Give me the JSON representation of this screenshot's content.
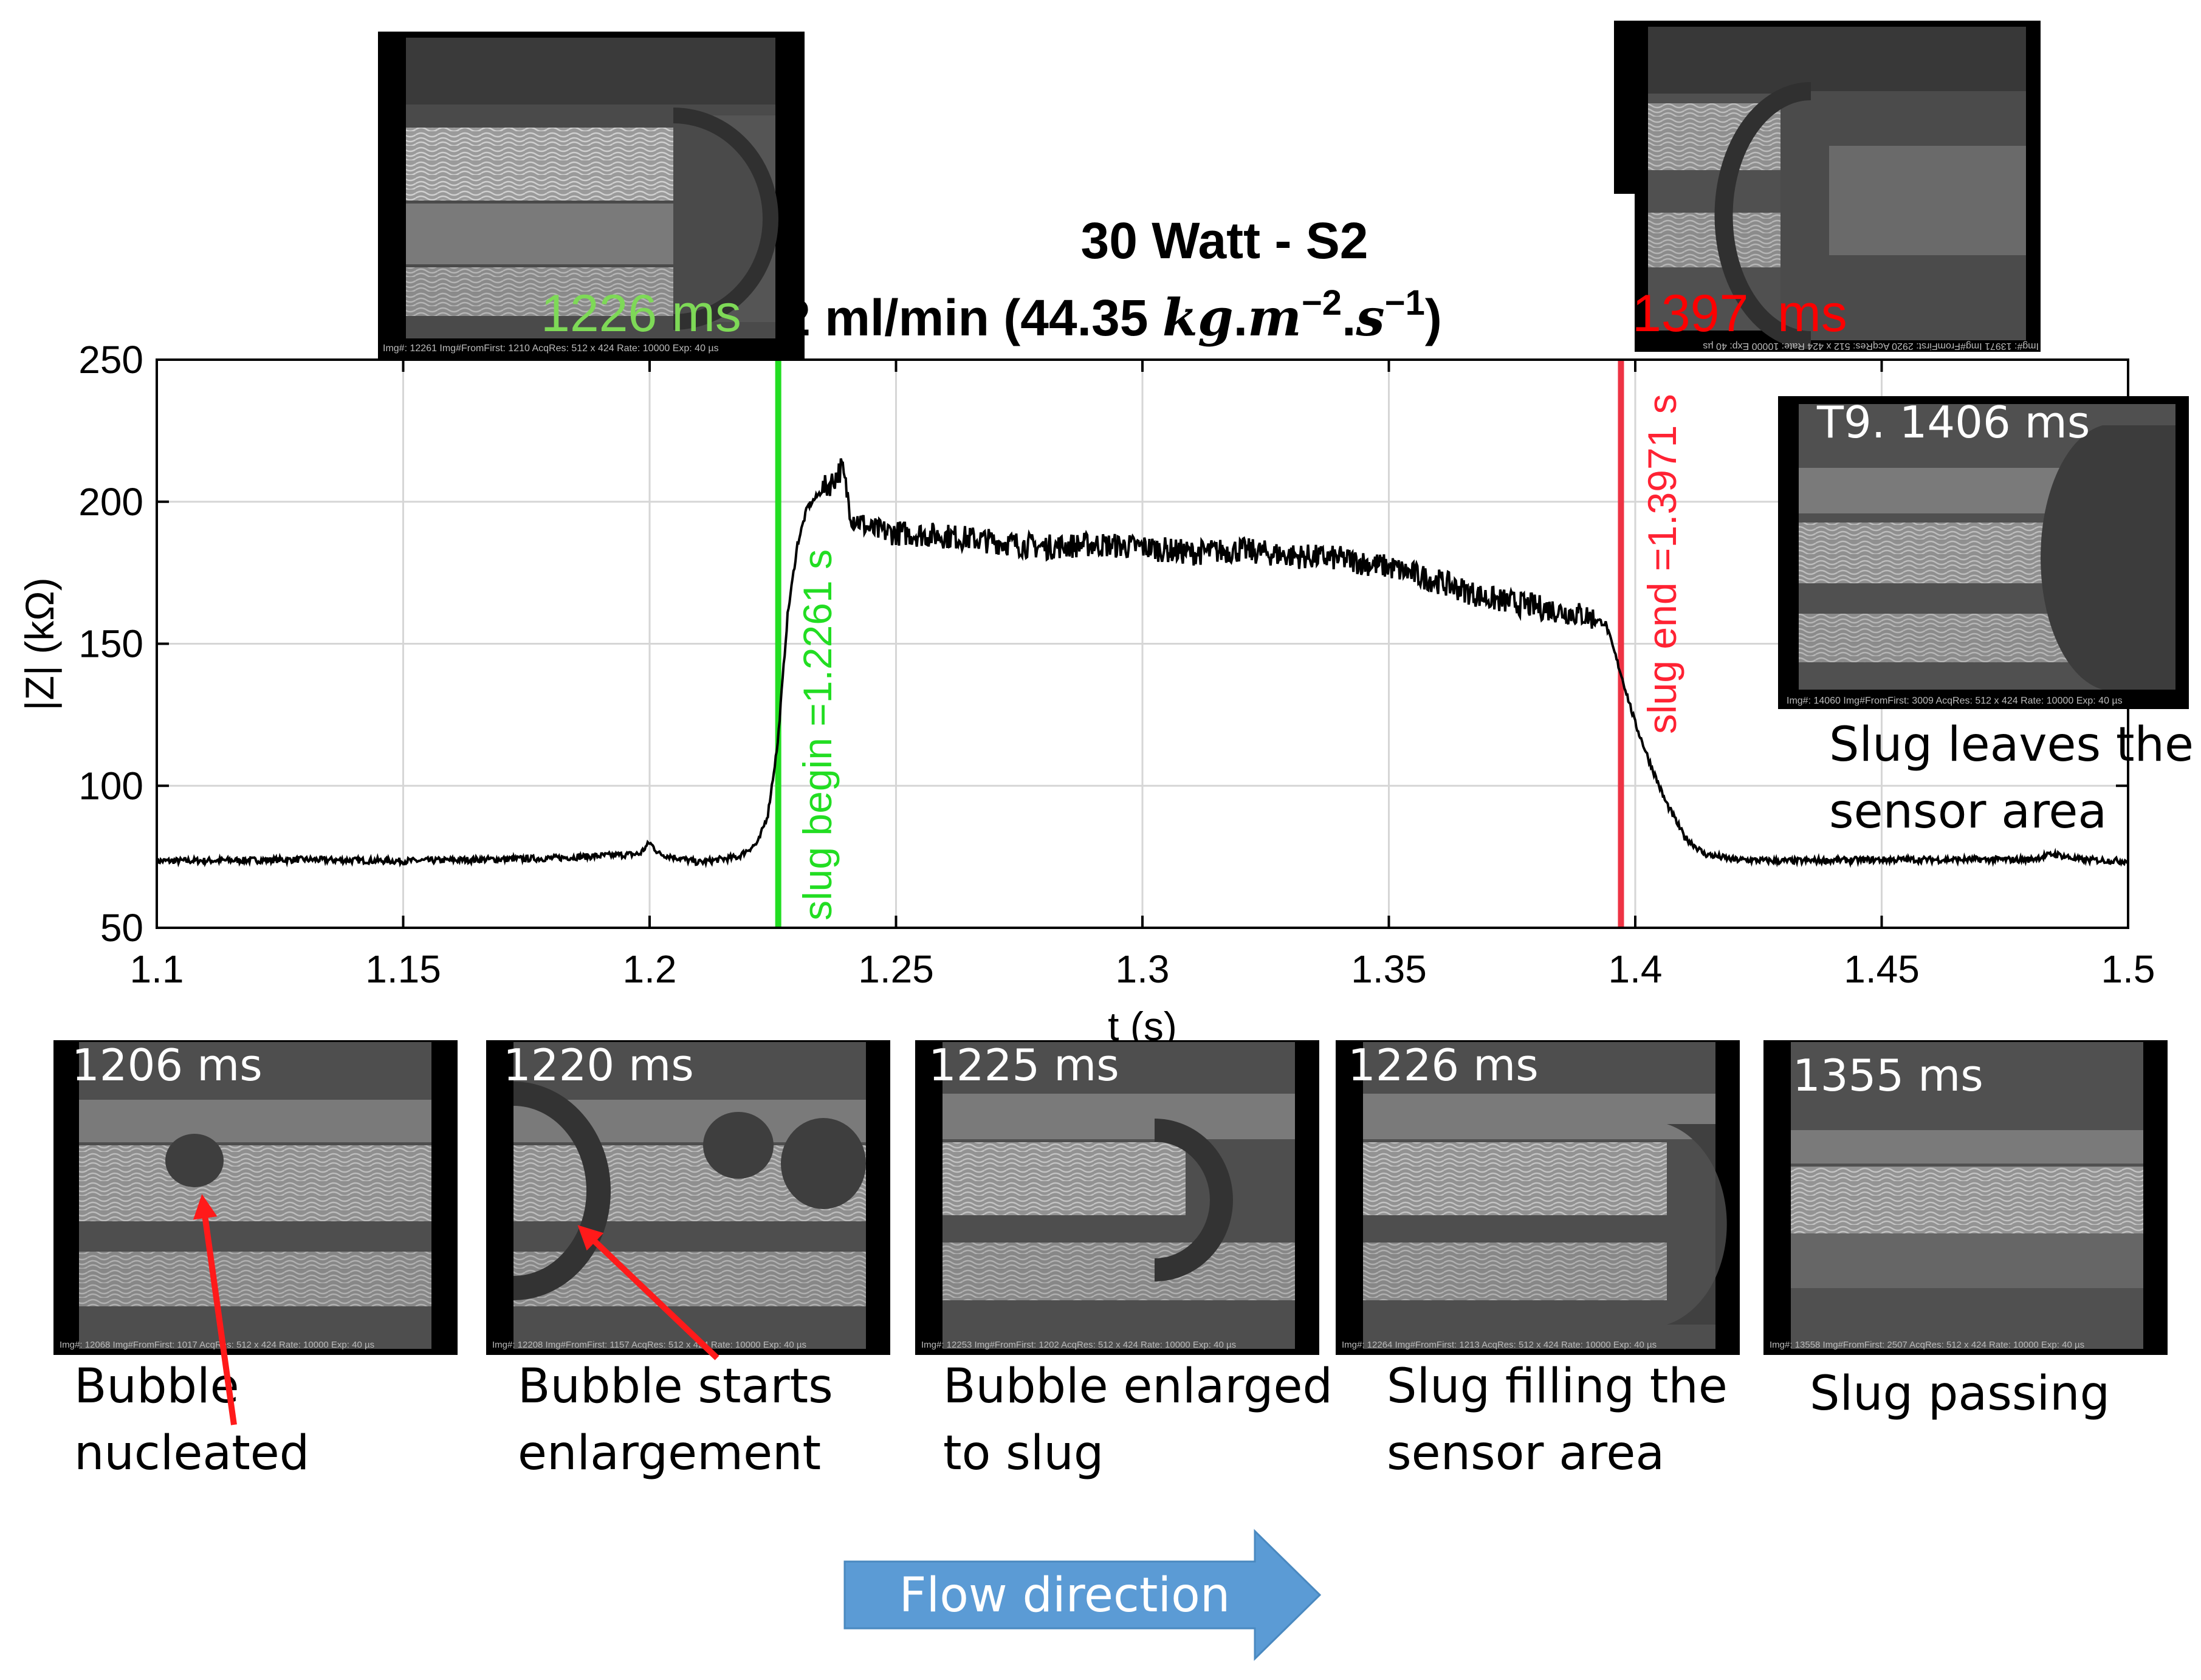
{
  "title": {
    "line1": "30 Watt - S2",
    "line2_prefix": "2 ml/min (44.35 ",
    "line2_kg": "kg",
    "line2_dot1": ".",
    "line2_m": "m",
    "line2_m_exp": "−2",
    "line2_dot2": ".",
    "line2_s": "s",
    "line2_s_exp": "−1",
    "line2_suffix": ")"
  },
  "colors": {
    "begin": "#22dd22",
    "begin_label": "#7ed957",
    "end": "#ee3344",
    "end_label": "#ff0000",
    "arrow_fill": "#5b9bd5",
    "arrow_text": "#ffffff",
    "trace": "#000000",
    "grid": "#d6d6d6"
  },
  "markers": {
    "begin_label": "1226 ms",
    "end_label": "1397  ms",
    "begin_note": "slug begin =1.2261 s",
    "end_note": "slug end =1.3971 s"
  },
  "top_frames": {
    "left_caption": "Img#: 12261  Img#FromFirst: 1210  AcqRes: 512 x 424  Rate: 10000  Exp: 40 µs",
    "right_caption": "Img#: 13971  Img#FromFirst: 2920  AcqRes: 512 x 424  Rate: 10000  Exp: 40 µs"
  },
  "side_frame": {
    "label": "T9. 1406 ms",
    "caption": "Img#: 14060  Img#FromFirst: 3009  AcqRes: 512 x 424  Rate: 10000  Exp: 40 µs",
    "desc_line1": "Slug leaves the",
    "desc_line2": "sensor area"
  },
  "bottom_frames": [
    {
      "label": "1206 ms",
      "caption": "Img#: 12068  Img#FromFirst: 1017  AcqRes: 512 x 424  Rate: 10000  Exp: 40 µs",
      "desc_line1": "Bubble",
      "desc_line2": "nucleated"
    },
    {
      "label": "1220 ms",
      "caption": "Img#: 12208  Img#FromFirst: 1157  AcqRes: 512 x 424  Rate: 10000  Exp: 40 µs",
      "desc_line1": "Bubble starts",
      "desc_line2": "enlargement"
    },
    {
      "label": "1225 ms",
      "caption": "Img#: 12253  Img#FromFirst: 1202  AcqRes: 512 x 424  Rate: 10000  Exp: 40 µs",
      "desc_line1": "Bubble enlarged",
      "desc_line2": "to slug"
    },
    {
      "label": "1226 ms",
      "caption": "Img#: 12264  Img#FromFirst: 1213  AcqRes: 512 x 424  Rate: 10000  Exp: 40 µs",
      "desc_line1": "Slug filling the",
      "desc_line2": "sensor area"
    },
    {
      "label": "1355 ms",
      "caption": "Img#: 13558  Img#FromFirst: 2507  AcqRes: 512 x 424  Rate: 10000  Exp: 40 µs",
      "desc_line1": "Slug passing",
      "desc_line2": ""
    }
  ],
  "arrow": {
    "label": "Flow direction"
  },
  "chart_data": {
    "type": "line",
    "title": "30 Watt - S2 / 2 ml/min (44.35 kg.m^-2.s^-1)",
    "xlabel": "t (s)",
    "ylabel": "|Z| (kΩ)",
    "xlim": [
      1.1,
      1.5
    ],
    "ylim": [
      50,
      250
    ],
    "xticks": [
      1.1,
      1.15,
      1.2,
      1.25,
      1.3,
      1.35,
      1.4,
      1.45,
      1.5
    ],
    "xtick_labels": [
      "1.1",
      "1.15",
      "1.2",
      "1.25",
      "1.3",
      "1.35",
      "1.4",
      "1.45",
      "1.5"
    ],
    "yticks": [
      50,
      100,
      150,
      200,
      250
    ],
    "ytick_labels": [
      "50",
      "100",
      "150",
      "200",
      "250"
    ],
    "grid": true,
    "vlines": [
      {
        "x": 1.2261,
        "label": "slug begin =1.2261 s",
        "color": "#22dd22"
      },
      {
        "x": 1.3971,
        "label": "slug end =1.3971 s",
        "color": "#ee3344"
      }
    ],
    "series": [
      {
        "name": "|Z|",
        "x": [
          1.1,
          1.13,
          1.15,
          1.18,
          1.198,
          1.2,
          1.202,
          1.21,
          1.218,
          1.222,
          1.224,
          1.226,
          1.228,
          1.23,
          1.232,
          1.235,
          1.237,
          1.239,
          1.241,
          1.245,
          1.25,
          1.26,
          1.27,
          1.28,
          1.29,
          1.3,
          1.31,
          1.32,
          1.33,
          1.34,
          1.35,
          1.36,
          1.37,
          1.38,
          1.39,
          1.394,
          1.397,
          1.4,
          1.403,
          1.406,
          1.41,
          1.414,
          1.42,
          1.43,
          1.45,
          1.48,
          1.485,
          1.49,
          1.5
        ],
        "y": [
          73.5,
          74,
          73.5,
          74.5,
          76,
          80,
          76,
          73,
          75,
          80,
          90,
          115,
          160,
          185,
          198,
          204,
          207,
          212,
          195,
          190,
          189,
          188,
          186,
          184,
          185,
          184,
          182,
          183,
          181,
          180,
          177,
          172,
          166,
          163,
          160,
          157,
          140,
          122,
          108,
          95,
          82,
          76,
          74,
          73.5,
          74,
          74,
          76,
          74,
          73.5
        ]
      }
    ]
  }
}
